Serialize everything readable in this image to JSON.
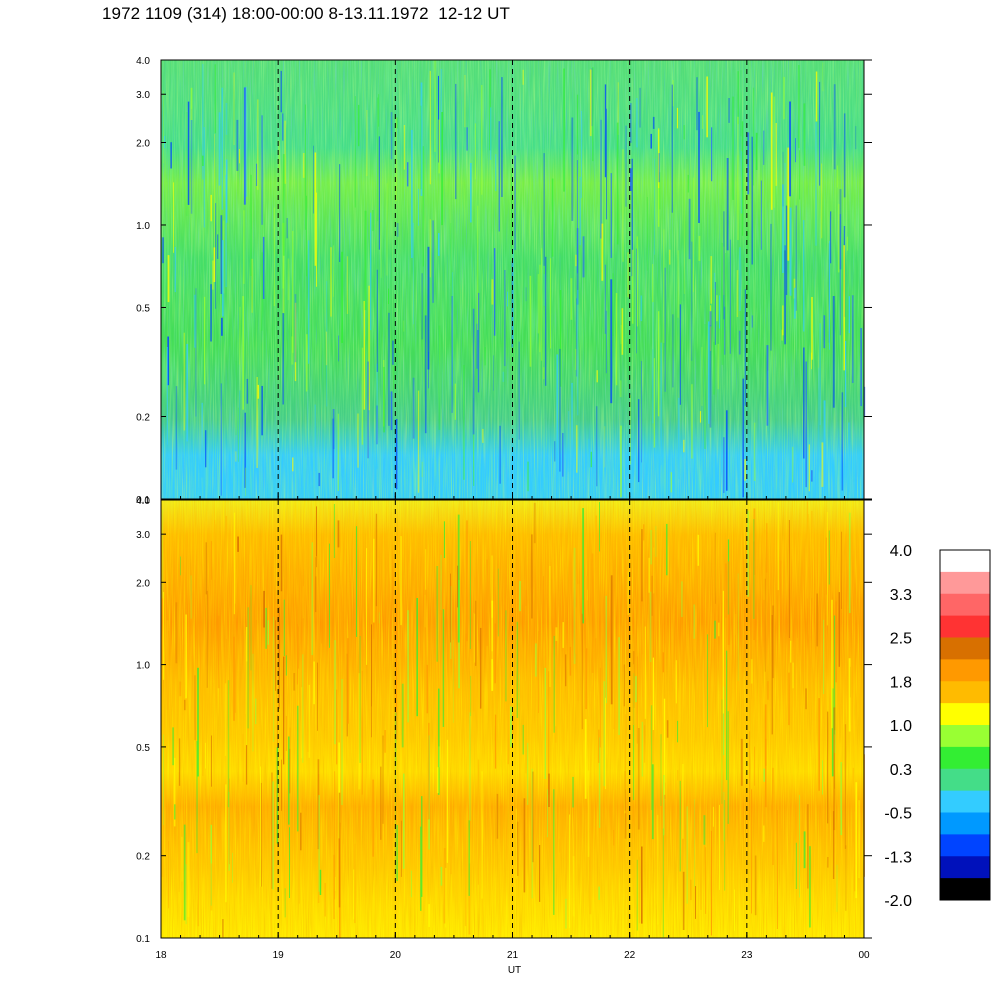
{
  "title": "1972 1109 (314) 18:00-00:00 8-13.11.1972  12-12 UT",
  "chart_data": [
    {
      "type": "heatmap",
      "panel": "top",
      "x_label": "",
      "x_range": [
        18,
        24
      ],
      "x_ticks": [
        "18",
        "19",
        "20",
        "21",
        "22",
        "23",
        "00"
      ],
      "y_scale": "log",
      "y_range": [
        0.1,
        4.0
      ],
      "y_ticks": [
        "0.1",
        "0.2",
        "0.5",
        "1.0",
        "2.0",
        "3.0",
        "4.0"
      ],
      "y_tick_values": [
        0.1,
        0.2,
        0.5,
        1.0,
        2.0,
        3.0,
        4.0
      ],
      "dashed_vlines_at": [
        19,
        20,
        21,
        22,
        23
      ],
      "dominant_levels": [
        "-0.5",
        "0.3",
        "1.0"
      ]
    },
    {
      "type": "heatmap",
      "panel": "bottom",
      "x_label": "UT",
      "x_range": [
        18,
        24
      ],
      "x_ticks": [
        "18",
        "19",
        "20",
        "21",
        "22",
        "23",
        "00"
      ],
      "y_scale": "log",
      "y_range": [
        0.1,
        4.0
      ],
      "y_ticks": [
        "0.1",
        "0.2",
        "0.5",
        "1.0",
        "2.0",
        "3.0",
        "4.0"
      ],
      "y_tick_values": [
        0.1,
        0.2,
        0.5,
        1.0,
        2.0,
        3.0,
        4.0
      ],
      "dashed_vlines_at": [
        19,
        20,
        21,
        22,
        23
      ],
      "dominant_levels": [
        "1.0",
        "1.8",
        "2.5"
      ]
    }
  ],
  "colorbar": {
    "labels": [
      "4.0",
      "3.3",
      "2.5",
      "1.8",
      "1.0",
      "0.3",
      "-0.5",
      "-1.3",
      "-2.0"
    ],
    "colors_top_to_bottom": [
      "#ffffff",
      "#ff9999",
      "#ff6666",
      "#ff3333",
      "#d87000",
      "#ff9900",
      "#ffbb00",
      "#ffff00",
      "#99ff33",
      "#33ee33",
      "#44dd88",
      "#33ccff",
      "#0099ff",
      "#0044ff",
      "#0011bb",
      "#000000"
    ]
  }
}
